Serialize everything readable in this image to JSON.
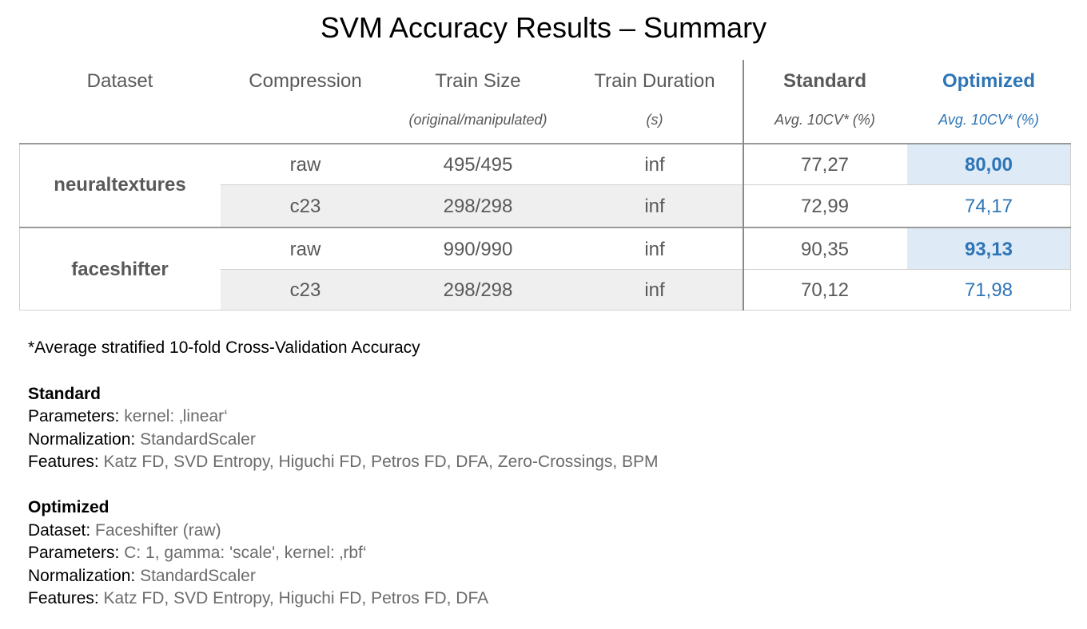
{
  "title": "SVM Accuracy Results – Summary",
  "table": {
    "headers": [
      {
        "label": "Dataset",
        "sub": ""
      },
      {
        "label": "Compression",
        "sub": ""
      },
      {
        "label": "Train Size",
        "sub": "(original/manipulated)"
      },
      {
        "label": "Train Duration",
        "sub": "(s)"
      },
      {
        "label": "Standard",
        "sub": "Avg. 10CV* (%)"
      },
      {
        "label": "Optimized",
        "sub": "Avg. 10CV* (%)"
      }
    ],
    "groups": [
      {
        "dataset": "neuraltextures",
        "rows": [
          {
            "compression": "raw",
            "train_size": "495/495",
            "train_duration": "inf",
            "standard": "77,27",
            "optimized": "80,00"
          },
          {
            "compression": "c23",
            "train_size": "298/298",
            "train_duration": "inf",
            "standard": "72,99",
            "optimized": "74,17"
          }
        ]
      },
      {
        "dataset": "faceshifter",
        "rows": [
          {
            "compression": "raw",
            "train_size": "990/990",
            "train_duration": "inf",
            "standard": "90,35",
            "optimized": "93,13"
          },
          {
            "compression": "c23",
            "train_size": "298/298",
            "train_duration": "inf",
            "standard": "70,12",
            "optimized": "71,98"
          }
        ]
      }
    ]
  },
  "footnote": "*Average stratified 10-fold Cross-Validation Accuracy",
  "standard": {
    "heading": "Standard",
    "params_key": "Parameters: ",
    "params_val": "kernel: ‚linear‘",
    "norm_key": "Normalization: ",
    "norm_val": "StandardScaler",
    "feat_key": "Features: ",
    "feat_val": "Katz FD, SVD Entropy, Higuchi FD, Petros FD, DFA, Zero-Crossings, BPM"
  },
  "optimized": {
    "heading": "Optimized",
    "dataset_key": "Dataset: ",
    "dataset_val": "Faceshifter (raw)",
    "params_key": "Parameters: ",
    "params_val": "C: 1, gamma: 'scale', kernel: ‚rbf‘",
    "norm_key": "Normalization: ",
    "norm_val": "StandardScaler",
    "feat_key": "Features: ",
    "feat_val": "Katz FD, SVD Entropy, Higuchi FD, Petros FD, DFA"
  }
}
